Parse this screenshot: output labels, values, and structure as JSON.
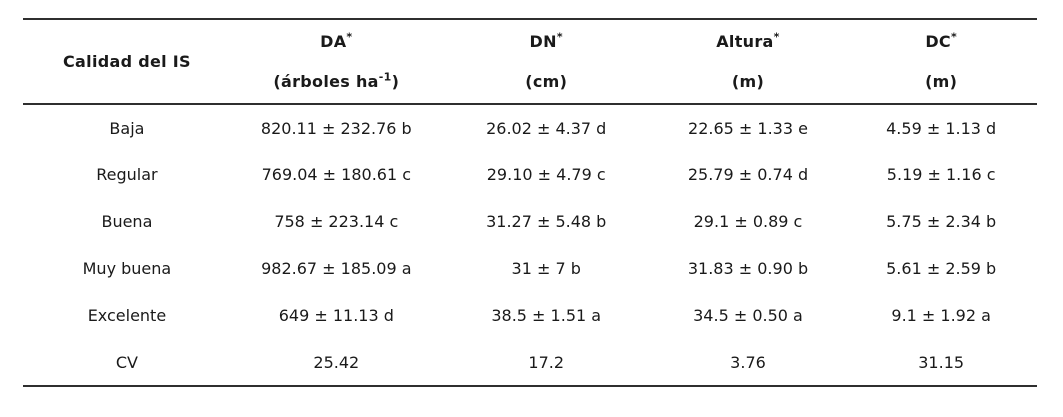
{
  "table": {
    "description_colors": {
      "text": "#1a1a1a",
      "rule": "#2f2f2f",
      "background": "#ffffff"
    },
    "header": {
      "row_label": "Calidad del IS",
      "cols": [
        {
          "abbr": "DA",
          "marker": "*",
          "unit_main": "(árboles ha",
          "unit_sup": "-1",
          "unit_close": ")"
        },
        {
          "abbr": "DN",
          "marker": "*",
          "unit_main": "(cm)",
          "unit_sup": "",
          "unit_close": ""
        },
        {
          "abbr": "Altura",
          "marker": "*",
          "unit_main": "(m)",
          "unit_sup": "",
          "unit_close": ""
        },
        {
          "abbr": "DC",
          "marker": "*",
          "unit_main": "(m)",
          "unit_sup": "",
          "unit_close": ""
        }
      ]
    },
    "rows": [
      {
        "calidad": "Baja",
        "da": "820.11 ± 232.76 b",
        "dn": "26.02 ± 4.37 d",
        "altura": "22.65 ± 1.33 e",
        "dc": "4.59 ± 1.13 d"
      },
      {
        "calidad": "Regular",
        "da": "769.04 ± 180.61 c",
        "dn": "29.10 ± 4.79 c",
        "altura": "25.79 ± 0.74 d",
        "dc": "5.19 ± 1.16 c"
      },
      {
        "calidad": "Buena",
        "da": "758 ± 223.14 c",
        "dn": "31.27 ± 5.48 b",
        "altura": "29.1 ± 0.89 c",
        "dc": "5.75 ± 2.34 b"
      },
      {
        "calidad": "Muy buena",
        "da": "982.67 ± 185.09 a",
        "dn": "31 ± 7 b",
        "altura": "31.83 ± 0.90 b",
        "dc": "5.61 ± 2.59 b"
      },
      {
        "calidad": "Excelente",
        "da": "649 ± 11.13 d",
        "dn": "38.5 ± 1.51 a",
        "altura": "34.5 ± 0.50 a",
        "dc": "9.1 ± 1.92 a"
      },
      {
        "calidad": "CV",
        "da": "25.42",
        "dn": "17.2",
        "altura": "3.76",
        "dc": "31.15"
      }
    ]
  }
}
